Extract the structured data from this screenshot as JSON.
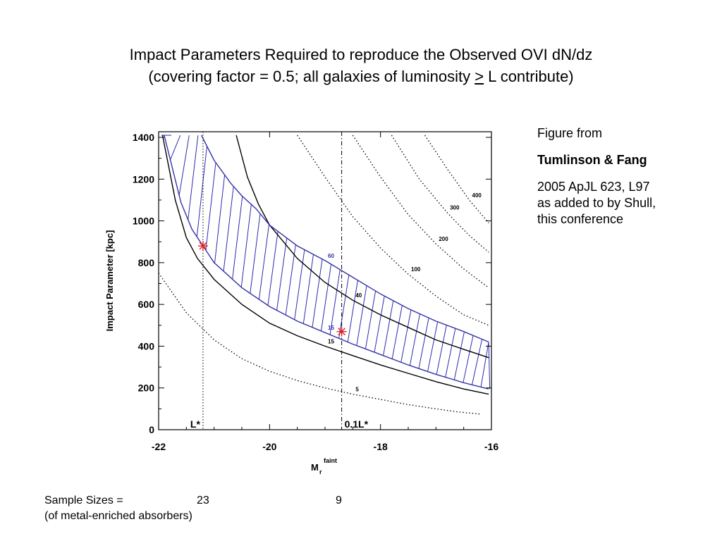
{
  "title": {
    "line1": "Impact Parameters Required to reproduce the Observed OVI dN/dz",
    "line2_pre": "(covering factor = 0.5; all galaxies of luminosity ",
    "line2_ge": ">",
    "line2_post": " L contribute)"
  },
  "sidebar": {
    "line1": "Figure from",
    "authors": "Tumlinson & Fang",
    "ref1": "2005 ApJL 623, L97",
    "ref2": "as added to by Shull,",
    "ref3": "this conference"
  },
  "footer": {
    "label": "Sample Sizes =",
    "count_lstar": "23",
    "count_01lstar": "9",
    "note": "(of metal-enriched absorbers)"
  },
  "chart_data": {
    "type": "line",
    "xlabel": "M",
    "xlabel_sub": "r",
    "xlabel_sup": "faint",
    "ylabel": "Impact Parameter [kpc]",
    "xlim": [
      -22,
      -16
    ],
    "ylim": [
      0,
      1400
    ],
    "xticks": [
      "-22",
      "-20",
      "-18",
      "-16"
    ],
    "yticks": [
      "0",
      "200",
      "400",
      "600",
      "800",
      "1000",
      "1200",
      "1400"
    ],
    "vertical_markers": [
      {
        "x": -21.2,
        "label": "L*",
        "style": "dotted"
      },
      {
        "x": -18.7,
        "label": "0.1L*",
        "style": "dash-dot"
      }
    ],
    "contours": [
      {
        "label": "5",
        "style": "dotted",
        "color": "#000000",
        "points": [
          [
            -22,
            750
          ],
          [
            -21.5,
            560
          ],
          [
            -21,
            430
          ],
          [
            -20.5,
            340
          ],
          [
            -20,
            280
          ],
          [
            -19.5,
            235
          ],
          [
            -19,
            200
          ],
          [
            -18.5,
            170
          ],
          [
            -18,
            145
          ],
          [
            -17.5,
            120
          ],
          [
            -17,
            100
          ],
          [
            -16.6,
            85
          ],
          [
            -16.2,
            75
          ]
        ]
      },
      {
        "label": "15",
        "style": "solid",
        "color": "#000000",
        "points": [
          [
            -21.93,
            1410
          ],
          [
            -21.7,
            1100
          ],
          [
            -21.5,
            920
          ],
          [
            -21.3,
            820
          ],
          [
            -21,
            720
          ],
          [
            -20.5,
            600
          ],
          [
            -20,
            510
          ],
          [
            -19.5,
            450
          ],
          [
            -19,
            400
          ],
          [
            -18.5,
            355
          ],
          [
            -18,
            310
          ],
          [
            -17.5,
            270
          ],
          [
            -17,
            230
          ],
          [
            -16.5,
            195
          ],
          [
            -16.05,
            170
          ]
        ]
      },
      {
        "label": "15",
        "style": "solid",
        "color": "#3333aa",
        "points": [
          [
            -21.9,
            1410
          ],
          [
            -21.6,
            1090
          ],
          [
            -21.4,
            960
          ],
          [
            -21.2,
            880
          ],
          [
            -21,
            800
          ],
          [
            -20.5,
            680
          ],
          [
            -20,
            590
          ],
          [
            -19.5,
            520
          ],
          [
            -19,
            465
          ],
          [
            -18.5,
            410
          ],
          [
            -18,
            360
          ],
          [
            -17.5,
            310
          ],
          [
            -17,
            265
          ],
          [
            -16.5,
            225
          ],
          [
            -16.05,
            195
          ]
        ]
      },
      {
        "label": "40",
        "style": "solid",
        "color": "#000000",
        "points": [
          [
            -20.6,
            1410
          ],
          [
            -20.4,
            1210
          ],
          [
            -20.2,
            1080
          ],
          [
            -20,
            980
          ],
          [
            -19.5,
            820
          ],
          [
            -19,
            705
          ],
          [
            -18.5,
            620
          ],
          [
            -18,
            550
          ],
          [
            -17.5,
            490
          ],
          [
            -17,
            430
          ],
          [
            -16.5,
            385
          ],
          [
            -16.05,
            345
          ]
        ]
      },
      {
        "label": "60",
        "style": "solid",
        "color": "#3333aa",
        "points": [
          [
            -21.23,
            1410
          ],
          [
            -21,
            1290
          ],
          [
            -20.7,
            1180
          ],
          [
            -20.5,
            1120
          ],
          [
            -20.25,
            1060
          ],
          [
            -20,
            980
          ],
          [
            -19.5,
            880
          ],
          [
            -19,
            810
          ],
          [
            -18.5,
            730
          ],
          [
            -18,
            650
          ],
          [
            -17.5,
            580
          ],
          [
            -17,
            520
          ],
          [
            -16.5,
            470
          ],
          [
            -16.05,
            420
          ]
        ]
      },
      {
        "label": "100",
        "style": "dotted",
        "color": "#000000",
        "points": [
          [
            -19.5,
            1410
          ],
          [
            -19,
            1210
          ],
          [
            -18.5,
            1020
          ],
          [
            -18,
            870
          ],
          [
            -17.5,
            745
          ],
          [
            -17,
            640
          ],
          [
            -16.5,
            550
          ],
          [
            -16.05,
            500
          ]
        ]
      },
      {
        "label": "200",
        "style": "dotted",
        "color": "#000000",
        "points": [
          [
            -18.5,
            1410
          ],
          [
            -18,
            1210
          ],
          [
            -17.5,
            1030
          ],
          [
            -17,
            890
          ],
          [
            -16.5,
            770
          ],
          [
            -16.05,
            680
          ]
        ]
      },
      {
        "label": "300",
        "style": "dotted",
        "color": "#000000",
        "points": [
          [
            -17.8,
            1410
          ],
          [
            -17.3,
            1200
          ],
          [
            -16.8,
            1040
          ],
          [
            -16.4,
            930
          ],
          [
            -16.05,
            850
          ]
        ]
      },
      {
        "label": "400",
        "style": "dotted",
        "color": "#000000",
        "points": [
          [
            -17.2,
            1410
          ],
          [
            -16.8,
            1250
          ],
          [
            -16.4,
            1100
          ],
          [
            -16.05,
            990
          ]
        ]
      }
    ],
    "observed_points": [
      {
        "x": -21.2,
        "y": 880,
        "label": "L*"
      },
      {
        "x": -18.7,
        "y": 470,
        "label": "0.1L*"
      }
    ]
  }
}
